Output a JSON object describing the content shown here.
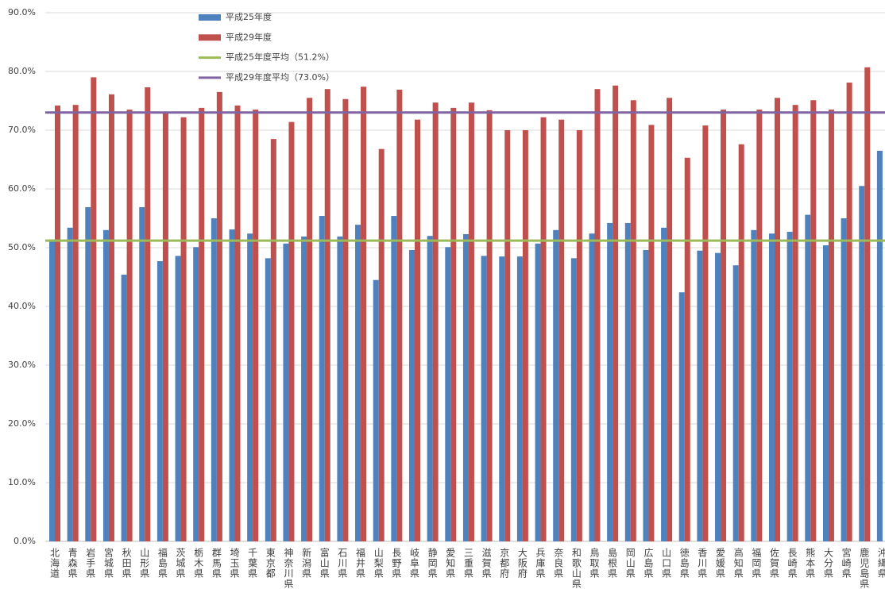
{
  "chart_data": {
    "type": "bar",
    "categories": [
      "北海道",
      "青森県",
      "岩手県",
      "宮城県",
      "秋田県",
      "山形県",
      "福島県",
      "茨城県",
      "栃木県",
      "群馬県",
      "埼玉県",
      "千葉県",
      "東京都",
      "神奈川県",
      "新潟県",
      "富山県",
      "石川県",
      "福井県",
      "山梨県",
      "長野県",
      "岐阜県",
      "静岡県",
      "愛知県",
      "三重県",
      "滋賀県",
      "京都府",
      "大阪府",
      "兵庫県",
      "奈良県",
      "和歌山県",
      "鳥取県",
      "島根県",
      "岡山県",
      "広島県",
      "山口県",
      "徳島県",
      "香川県",
      "愛媛県",
      "高知県",
      "福岡県",
      "佐賀県",
      "長崎県",
      "熊本県",
      "大分県",
      "宮崎県",
      "鹿児島県",
      "沖縄県"
    ],
    "series": [
      {
        "name": "平成25年度",
        "color": "#4f81bd",
        "values": [
          51.4,
          53.4,
          56.9,
          53.0,
          45.4,
          56.9,
          47.7,
          48.6,
          50.1,
          55.0,
          53.1,
          52.4,
          48.2,
          50.7,
          51.9,
          55.4,
          51.9,
          53.9,
          44.5,
          55.4,
          49.6,
          52.0,
          50.1,
          52.3,
          48.6,
          48.5,
          48.5,
          50.7,
          53.0,
          48.2,
          52.4,
          54.2,
          54.2,
          49.6,
          53.4,
          42.4,
          49.5,
          49.1,
          47.0,
          53.0,
          52.4,
          52.7,
          55.6,
          50.4,
          55.0,
          60.5,
          66.5
        ]
      },
      {
        "name": "平成29年度",
        "color": "#c0504d",
        "values": [
          74.2,
          74.3,
          79.0,
          76.1,
          73.5,
          77.3,
          73.0,
          72.2,
          73.8,
          76.5,
          74.2,
          73.5,
          68.5,
          71.4,
          75.5,
          77.0,
          75.3,
          77.4,
          66.8,
          76.9,
          71.8,
          74.7,
          73.8,
          74.7,
          73.4,
          70.0,
          70.0,
          72.2,
          71.8,
          70.0,
          77.0,
          77.6,
          75.1,
          70.9,
          75.5,
          65.3,
          70.8,
          73.5,
          67.6,
          73.5,
          75.5,
          74.3,
          75.1,
          73.5,
          78.1,
          80.7,
          null
        ]
      }
    ],
    "lines": [
      {
        "name": "平成25年度平均（51.2%）",
        "color": "#9bbb59",
        "value": 51.2
      },
      {
        "name": "平成29年度平均（73.0%）",
        "color": "#8064a2",
        "value": 73.0
      }
    ],
    "ylim": [
      0,
      90
    ],
    "yticks": [
      {
        "value": 0,
        "label": "0.0%"
      },
      {
        "value": 10,
        "label": "10.0%"
      },
      {
        "value": 20,
        "label": "20.0%"
      },
      {
        "value": 30,
        "label": "30.0%"
      },
      {
        "value": 40,
        "label": "40.0%"
      },
      {
        "value": 50,
        "label": "50.0%"
      },
      {
        "value": 60,
        "label": "60.0%"
      },
      {
        "value": 70,
        "label": "70.0%"
      },
      {
        "value": 80,
        "label": "80.0%"
      },
      {
        "value": 90,
        "label": "90.0%"
      }
    ],
    "grid": true,
    "legend": "top-left"
  }
}
